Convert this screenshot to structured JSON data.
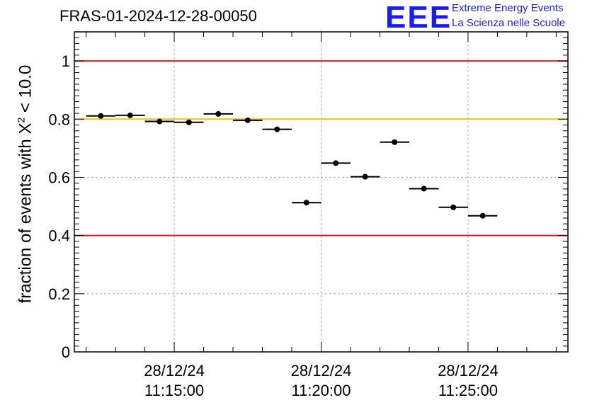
{
  "header": {
    "title": "FRAS-01-2024-12-28-00050",
    "logo_mark": "EEE",
    "logo_line1": "Extreme Energy Events",
    "logo_line2": "La Scienza nelle Scuole"
  },
  "chart_data": {
    "type": "scatter",
    "title": "FRAS-01-2024-12-28-00050",
    "ylabel_prefix": "fraction of events with X",
    "ylabel_sup": "2",
    "ylabel_suffix": " < 10.0",
    "xlabel": "",
    "ylim": [
      0,
      1.1
    ],
    "xlim_minutes": [
      11.6,
      28.4
    ],
    "grid": true,
    "x_ticks": [
      {
        "minute": 15,
        "date": "28/12/24",
        "time": "11:15:00"
      },
      {
        "minute": 20,
        "date": "28/12/24",
        "time": "11:20:00"
      },
      {
        "minute": 25,
        "date": "28/12/24",
        "time": "11:25:00"
      }
    ],
    "y_ticks": [
      "0",
      "0.2",
      "0.4",
      "0.6",
      "0.8",
      "1"
    ],
    "y_tick_values": [
      0,
      0.2,
      0.4,
      0.6,
      0.8,
      1.0
    ],
    "reference_lines": [
      {
        "value": 1.0,
        "color": "#e41a1c"
      },
      {
        "value": 0.8,
        "color": "#ffc000"
      },
      {
        "value": 0.4,
        "color": "#e41a1c"
      }
    ],
    "points": [
      {
        "t_start": "11:12:00",
        "t_end": "11:13:00",
        "y": 0.811
      },
      {
        "t_start": "11:13:00",
        "t_end": "11:14:00",
        "y": 0.813
      },
      {
        "t_start": "11:14:00",
        "t_end": "11:15:00",
        "y": 0.792
      },
      {
        "t_start": "11:15:00",
        "t_end": "11:16:00",
        "y": 0.789
      },
      {
        "t_start": "11:16:00",
        "t_end": "11:17:00",
        "y": 0.818
      },
      {
        "t_start": "11:17:00",
        "t_end": "11:18:00",
        "y": 0.796
      },
      {
        "t_start": "11:18:00",
        "t_end": "11:19:00",
        "y": 0.765
      },
      {
        "t_start": "11:19:00",
        "t_end": "11:20:00",
        "y": 0.513
      },
      {
        "t_start": "11:20:00",
        "t_end": "11:21:00",
        "y": 0.649
      },
      {
        "t_start": "11:21:00",
        "t_end": "11:22:00",
        "y": 0.602
      },
      {
        "t_start": "11:22:00",
        "t_end": "11:23:00",
        "y": 0.721
      },
      {
        "t_start": "11:23:00",
        "t_end": "11:24:00",
        "y": 0.561
      },
      {
        "t_start": "11:24:00",
        "t_end": "11:25:00",
        "y": 0.497
      },
      {
        "t_start": "11:25:00",
        "t_end": "11:26:00",
        "y": 0.468
      }
    ],
    "colors": {
      "axis": "#000000",
      "grid": "#b0b0b0",
      "marker": "#000000"
    }
  }
}
